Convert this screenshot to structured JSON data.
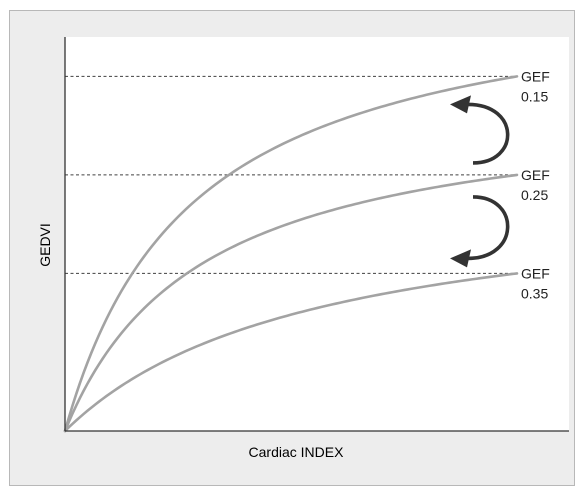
{
  "chart_data": {
    "type": "line",
    "xlabel": "Cardiac INDEX",
    "ylabel": "GEDVI",
    "grid": false,
    "legend": "inline labels at right end of each curve",
    "series": [
      {
        "name_line1": "GEF",
        "name_line2": "0.15",
        "asymptote": 0.9,
        "curvature": 0.28
      },
      {
        "name_line1": "GEF",
        "name_line2": "0.25",
        "asymptote": 0.65,
        "curvature": 0.3
      },
      {
        "name_line1": "GEF",
        "name_line2": "0.35",
        "asymptote": 0.4,
        "curvature": 0.55
      }
    ],
    "reference_levels": [
      0.9,
      0.65,
      0.4
    ],
    "arrows": [
      {
        "from_series": 1,
        "to_series": 0,
        "direction": "up"
      },
      {
        "from_series": 1,
        "to_series": 2,
        "direction": "down"
      }
    ],
    "colors": {
      "curve": "#a3a3a3",
      "reference_line": "#404040",
      "axis": "#333333",
      "arrow": "#333333",
      "plot_background": "#ffffff",
      "frame_background": "#ededed",
      "text": "#222222"
    }
  }
}
